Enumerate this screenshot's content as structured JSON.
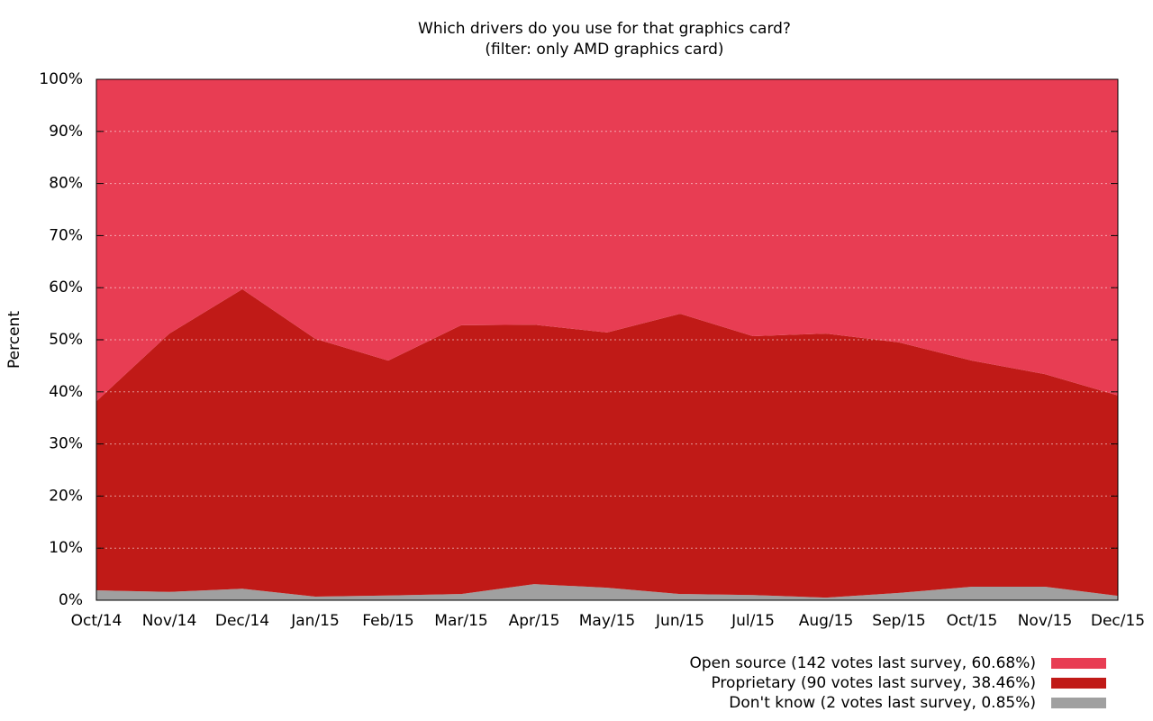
{
  "chart_data": {
    "type": "stacked-area",
    "title": "Which drivers do you use for that graphics card?",
    "subtitle": "(filter: only AMD graphics card)",
    "y_label": "Percent",
    "categories": [
      "Oct/14",
      "Nov/14",
      "Dec/14",
      "Jan/15",
      "Feb/15",
      "Mar/15",
      "Apr/15",
      "May/15",
      "Jun/15",
      "Jul/15",
      "Aug/15",
      "Sep/15",
      "Oct/15",
      "Nov/15",
      "Dec/15"
    ],
    "series": [
      {
        "name": "Open source (142 votes last survey, 60.68%)",
        "color": "#e83d53",
        "values": [
          61.8,
          48.8,
          40.3,
          49.8,
          54.0,
          47.2,
          47.1,
          48.6,
          45.0,
          49.3,
          48.8,
          50.5,
          54.0,
          56.6,
          60.68
        ]
      },
      {
        "name": "Proprietary (90 votes last survey, 38.46%)",
        "color": "#c01a17",
        "values": [
          36.3,
          49.6,
          57.5,
          49.5,
          45.1,
          51.6,
          49.8,
          49.0,
          53.8,
          49.7,
          50.7,
          48.1,
          43.4,
          40.8,
          38.46
        ]
      },
      {
        "name": "Don't know (2 votes last survey, 0.85%)",
        "color": "#a0a0a0",
        "values": [
          1.9,
          1.6,
          2.2,
          0.7,
          0.9,
          1.2,
          3.1,
          2.4,
          1.2,
          1.0,
          0.5,
          1.4,
          2.6,
          2.6,
          0.85
        ]
      }
    ],
    "ylim": [
      0,
      100
    ],
    "yticks": [
      {
        "value": 0,
        "label": "0%"
      },
      {
        "value": 10,
        "label": "10%"
      },
      {
        "value": 20,
        "label": "20%"
      },
      {
        "value": 30,
        "label": "30%"
      },
      {
        "value": 40,
        "label": "40%"
      },
      {
        "value": 50,
        "label": "50%"
      },
      {
        "value": 60,
        "label": "60%"
      },
      {
        "value": 70,
        "label": "70%"
      },
      {
        "value": 80,
        "label": "80%"
      },
      {
        "value": 90,
        "label": "90%"
      },
      {
        "value": 100,
        "label": "100%"
      }
    ],
    "grid": true,
    "legend": "bottom-right"
  }
}
